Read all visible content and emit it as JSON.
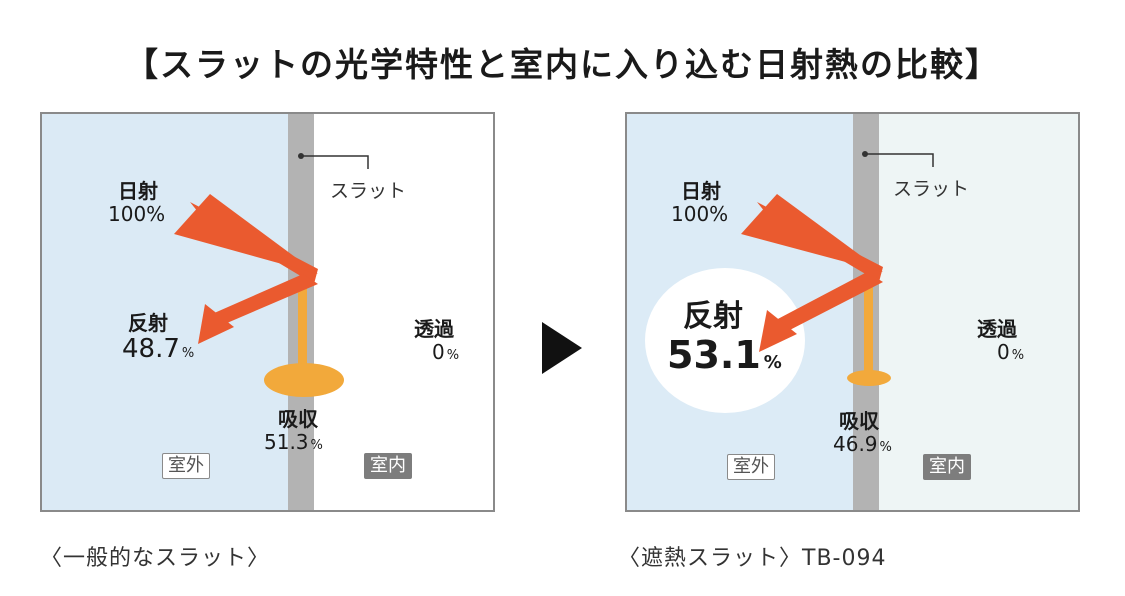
{
  "title": "【スラットの光学特性と室内に入り込む日射熱の比較】",
  "colors": {
    "outdoor_left": "#dbeaf5",
    "outdoor_right": "#dcebf6",
    "indoor_left": "#ffffff",
    "indoor_right": "#eef5f5",
    "slat": "#b3b3b3",
    "solar_arrow": "#ea5a2f",
    "absorbed": "#f2a93b",
    "indoor_badge": "#7d7d7d"
  },
  "panels": [
    {
      "slat_label": "スラット",
      "solar": {
        "label": "日射",
        "value": "100%"
      },
      "reflection": {
        "label": "反射",
        "value": "48.7",
        "unit": "%"
      },
      "transmission": {
        "label": "透過",
        "value": "0",
        "unit": "%"
      },
      "absorption": {
        "label": "吸収",
        "value": "51.3",
        "unit": "%"
      },
      "outdoor_badge": "室外",
      "indoor_badge": "室内",
      "caption": "〈一般的なスラット〉"
    },
    {
      "slat_label": "スラット",
      "solar": {
        "label": "日射",
        "value": "100%"
      },
      "reflection": {
        "label": "反射",
        "value": "53.1",
        "unit": "%"
      },
      "transmission": {
        "label": "透過",
        "value": "0",
        "unit": "%"
      },
      "absorption": {
        "label": "吸収",
        "value": "46.9",
        "unit": "%"
      },
      "outdoor_badge": "室外",
      "indoor_badge": "室内",
      "caption": "〈遮熱スラット〉TB-094"
    }
  ],
  "separator_icon": "play-triangle-icon"
}
